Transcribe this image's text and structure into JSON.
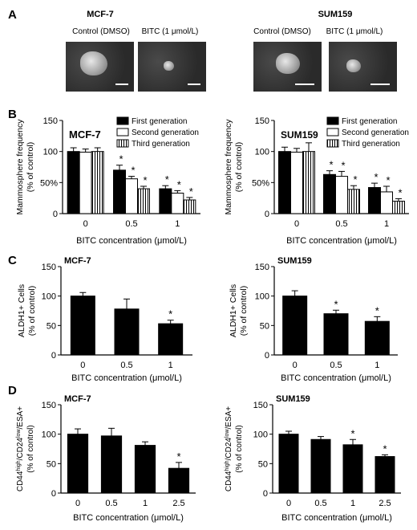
{
  "panel_labels": {
    "a": "A",
    "b": "B",
    "c": "C",
    "d": "D"
  },
  "panel_a": {
    "groups": [
      {
        "title": "MCF-7",
        "images": [
          {
            "label": "Control (DMSO)"
          },
          {
            "label": "BITC (1 μmol/L)"
          }
        ]
      },
      {
        "title": "SUM159",
        "images": [
          {
            "label": "Control (DMSO)"
          },
          {
            "label": "BITC (1 μmol/L)"
          }
        ]
      }
    ]
  },
  "chart_data": [
    {
      "id": "b-left",
      "type": "bar",
      "title": "MCF-7",
      "ylabel": [
        "Mammosphere frequency",
        "(% of control)"
      ],
      "xlabel": "BITC concentration (μmol/L)",
      "categories": [
        "0",
        "0.5",
        "1"
      ],
      "ylim": [
        0,
        150
      ],
      "yticks": [
        "0",
        "50%",
        "100",
        "150"
      ],
      "ytick_values": [
        0,
        50,
        100,
        150
      ],
      "series": [
        {
          "name": "First generation",
          "fill": "solid",
          "values": [
            100,
            70,
            40
          ],
          "errors": [
            6,
            8,
            5
          ],
          "significant": [
            false,
            true,
            true
          ]
        },
        {
          "name": "Second generation",
          "fill": "open",
          "values": [
            99,
            56,
            33
          ],
          "errors": [
            5,
            4,
            4
          ],
          "significant": [
            false,
            true,
            true
          ]
        },
        {
          "name": "Third generation",
          "fill": "striped",
          "values": [
            100,
            40,
            22
          ],
          "errors": [
            6,
            4,
            4
          ],
          "significant": [
            false,
            true,
            true
          ]
        }
      ],
      "legend": "top-right"
    },
    {
      "id": "b-right",
      "type": "bar",
      "title": "SUM159",
      "ylabel": [
        "Mammosphere frequency",
        "(% of control)"
      ],
      "xlabel": "BITC concentration (μmol/L)",
      "categories": [
        "0",
        "0.5",
        "1"
      ],
      "ylim": [
        0,
        150
      ],
      "yticks": [
        "0",
        "50%",
        "100",
        "150"
      ],
      "ytick_values": [
        0,
        50,
        100,
        150
      ],
      "series": [
        {
          "name": "First generation",
          "fill": "solid",
          "values": [
            100,
            63,
            42
          ],
          "errors": [
            7,
            6,
            7
          ],
          "significant": [
            false,
            true,
            true
          ]
        },
        {
          "name": "Second generation",
          "fill": "open",
          "values": [
            99,
            60,
            35
          ],
          "errors": [
            6,
            8,
            9
          ],
          "significant": [
            false,
            true,
            true
          ]
        },
        {
          "name": "Third generation",
          "fill": "striped",
          "values": [
            100,
            39,
            20
          ],
          "errors": [
            14,
            6,
            4
          ],
          "significant": [
            false,
            true,
            true
          ]
        }
      ],
      "legend": "top-right"
    },
    {
      "id": "c-left",
      "type": "bar",
      "title": "MCF-7",
      "ylabel": [
        "ALDH1+ Cells",
        "(% of control)"
      ],
      "xlabel": "BITC concentration (μmol/L)",
      "categories": [
        "0",
        "0.5",
        "1"
      ],
      "ylim": [
        0,
        150
      ],
      "yticks": [
        "0",
        "50",
        "100",
        "150"
      ],
      "ytick_values": [
        0,
        50,
        100,
        150
      ],
      "series": [
        {
          "values": [
            100,
            78,
            53
          ],
          "errors": [
            6,
            17,
            6
          ],
          "significant": [
            false,
            false,
            true
          ]
        }
      ]
    },
    {
      "id": "c-right",
      "type": "bar",
      "title": "SUM159",
      "ylabel": [
        "ALDH1+ Cells",
        "(% of control)"
      ],
      "xlabel": "BITC concentration (μmol/L)",
      "categories": [
        "0",
        "0.5",
        "1"
      ],
      "ylim": [
        0,
        150
      ],
      "yticks": [
        "0",
        "50",
        "100",
        "150"
      ],
      "ytick_values": [
        0,
        50,
        100,
        150
      ],
      "series": [
        {
          "values": [
            100,
            70,
            57
          ],
          "errors": [
            9,
            6,
            8
          ],
          "significant": [
            false,
            true,
            true
          ]
        }
      ]
    },
    {
      "id": "d-left",
      "type": "bar",
      "title": "MCF-7",
      "ylabel_parts": [
        [
          {
            "t": "CD44",
            "s": "n"
          },
          {
            "t": "high",
            "s": "sup"
          },
          {
            "t": "/CD24",
            "s": "n"
          },
          {
            "t": "low",
            "s": "sup"
          },
          {
            "t": "/ESA+",
            "s": "n"
          }
        ],
        [
          {
            "t": "(% of control)",
            "s": "n"
          }
        ]
      ],
      "xlabel": "BITC concentration (μmol/L)",
      "categories": [
        "0",
        "0.5",
        "1",
        "2.5"
      ],
      "ylim": [
        0,
        150
      ],
      "yticks": [
        "0",
        "50",
        "100",
        "150"
      ],
      "ytick_values": [
        0,
        50,
        100,
        150
      ],
      "series": [
        {
          "values": [
            100,
            97,
            81,
            42
          ],
          "errors": [
            9,
            13,
            6,
            10
          ],
          "significant": [
            false,
            false,
            false,
            true
          ]
        }
      ]
    },
    {
      "id": "d-right",
      "type": "bar",
      "title": "SUM159",
      "ylabel_parts": [
        [
          {
            "t": "CD44",
            "s": "n"
          },
          {
            "t": "high",
            "s": "sup"
          },
          {
            "t": "/CD24",
            "s": "n"
          },
          {
            "t": "low",
            "s": "sup"
          },
          {
            "t": "/ESA+",
            "s": "n"
          }
        ],
        [
          {
            "t": "(% of control)",
            "s": "n"
          }
        ]
      ],
      "xlabel": "BITC concentration (μmol/L)",
      "categories": [
        "0",
        "0.5",
        "1",
        "2.5"
      ],
      "ylim": [
        0,
        150
      ],
      "yticks": [
        "0",
        "50",
        "100",
        "150"
      ],
      "ytick_values": [
        0,
        50,
        100,
        150
      ],
      "series": [
        {
          "values": [
            100,
            91,
            82,
            62
          ],
          "errors": [
            5,
            5,
            9,
            3
          ],
          "significant": [
            false,
            false,
            true,
            true
          ]
        }
      ]
    }
  ],
  "significance_marker": "*"
}
